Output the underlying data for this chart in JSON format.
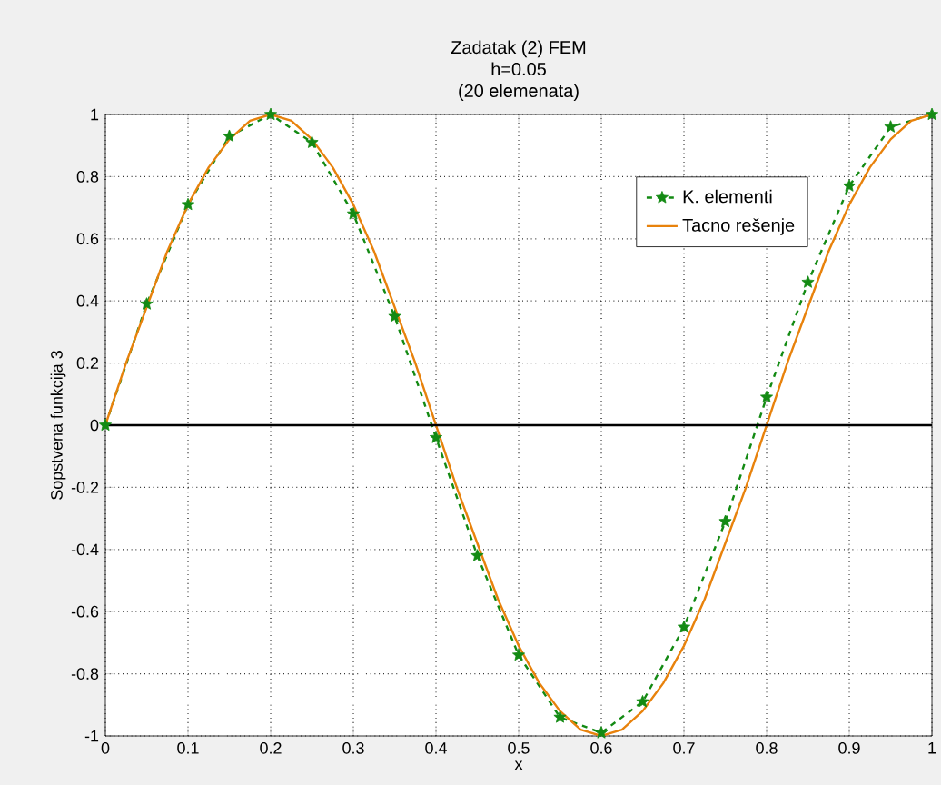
{
  "chart_data": {
    "type": "line",
    "title": "Zadatak (2) FEM",
    "subtitle": "h=0.05",
    "annotations": [
      "(20 elemenata)"
    ],
    "xlabel": "x",
    "ylabel": "Sopstvena funkcija 3",
    "series": [
      {
        "name": "K. elementi",
        "color": "#138a13",
        "marker": "star",
        "line_style": "dashed",
        "x": [
          0,
          0.05,
          0.1,
          0.15,
          0.2,
          0.25,
          0.3,
          0.35,
          0.4,
          0.45,
          0.5,
          0.55,
          0.6,
          0.65,
          0.7,
          0.75,
          0.8,
          0.85,
          0.9,
          0.95,
          1
        ],
        "values": [
          0,
          0.39,
          0.71,
          0.93,
          1.0,
          0.91,
          0.68,
          0.35,
          -0.04,
          -0.42,
          -0.74,
          -0.94,
          -0.99,
          -0.89,
          -0.65,
          -0.31,
          0.09,
          0.46,
          0.77,
          0.96,
          1.0
        ]
      },
      {
        "name": "Tacno rešenje",
        "color": "#e8820c",
        "marker": "none",
        "line_style": "solid",
        "x": [
          0,
          0.025,
          0.05,
          0.075,
          0.1,
          0.125,
          0.15,
          0.175,
          0.2,
          0.225,
          0.25,
          0.275,
          0.3,
          0.325,
          0.35,
          0.375,
          0.4,
          0.425,
          0.45,
          0.475,
          0.5,
          0.525,
          0.55,
          0.575,
          0.6,
          0.625,
          0.65,
          0.675,
          0.7,
          0.725,
          0.75,
          0.775,
          0.8,
          0.825,
          0.85,
          0.875,
          0.9,
          0.925,
          0.95,
          0.975,
          1
        ],
        "values": [
          0,
          0.2,
          0.38,
          0.56,
          0.71,
          0.83,
          0.92,
          0.98,
          1,
          0.98,
          0.92,
          0.83,
          0.71,
          0.56,
          0.38,
          0.2,
          0,
          -0.2,
          -0.38,
          -0.56,
          -0.71,
          -0.83,
          -0.92,
          -0.98,
          -1,
          -0.98,
          -0.92,
          -0.83,
          -0.71,
          -0.56,
          -0.38,
          -0.2,
          0,
          0.2,
          0.38,
          0.56,
          0.71,
          0.83,
          0.92,
          0.98,
          1
        ]
      }
    ],
    "xlim": [
      0,
      1
    ],
    "ylim": [
      -1,
      1
    ],
    "xticks": [
      0,
      0.1,
      0.2,
      0.3,
      0.4,
      0.5,
      0.6,
      0.7,
      0.8,
      0.9,
      1
    ],
    "yticks": [
      -1,
      -0.8,
      -0.6,
      -0.4,
      -0.2,
      0,
      0.2,
      0.4,
      0.6,
      0.8,
      1
    ],
    "grid": true,
    "legend": "top right",
    "ref_lines": [
      {
        "axis": "y",
        "value": 0,
        "color": "#000000"
      }
    ]
  }
}
